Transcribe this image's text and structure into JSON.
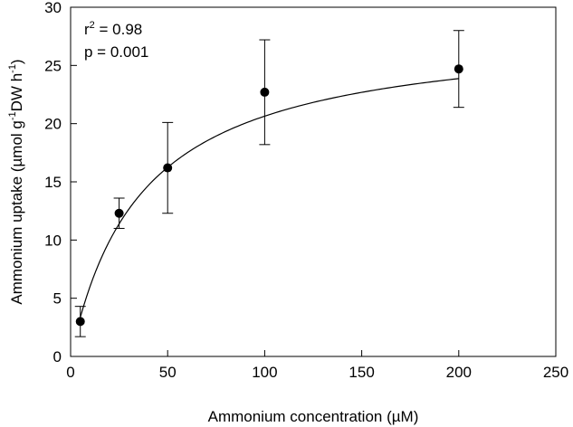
{
  "chart_data": {
    "type": "scatter",
    "title": "",
    "xlabel": "Ammonium concentration (µM)",
    "ylabel": {
      "prefix": "Ammonium uptake (µmol g",
      "sup1": "-1",
      "middle": "DW h",
      "sup2": "-1",
      "suffix": ")"
    },
    "xlim": [
      0,
      250
    ],
    "ylim": [
      0,
      30
    ],
    "xticks": [
      0,
      50,
      100,
      150,
      200,
      250
    ],
    "yticks": [
      0,
      5,
      10,
      15,
      20,
      25,
      30
    ],
    "grid": false,
    "series": [
      {
        "name": "Ammonium uptake",
        "x": [
          5,
          25,
          50,
          100,
          200
        ],
        "y": [
          3.0,
          12.3,
          16.2,
          22.7,
          24.7
        ],
        "err_low": [
          1.3,
          1.3,
          3.9,
          4.5,
          3.3
        ],
        "err_high": [
          1.3,
          1.3,
          3.9,
          4.5,
          3.3
        ]
      }
    ],
    "fit": {
      "type": "michaelis-menten",
      "vmax": 28.3,
      "km": 37.1,
      "x_start": 5,
      "x_end": 200
    },
    "annotations": {
      "r2_label": "r",
      "r2_sup": "2",
      "r2_value": " = 0.98",
      "p_text": "p = 0.001"
    }
  }
}
